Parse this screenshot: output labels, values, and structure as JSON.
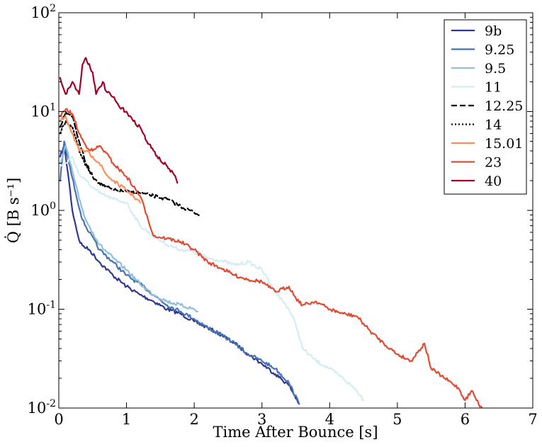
{
  "chart_data": {
    "type": "line",
    "xlabel": "Time After Bounce [s]",
    "ylabel": "Q̇ [B s⁻¹]",
    "xlim": [
      0,
      7
    ],
    "ylim": [
      0.01,
      100
    ],
    "yscale": "log",
    "x_ticks": [
      0,
      1,
      2,
      3,
      4,
      5,
      6,
      7
    ],
    "y_ticks": [
      {
        "value": 0.01,
        "base": "10",
        "exp": "-2"
      },
      {
        "value": 0.1,
        "base": "10",
        "exp": "-1"
      },
      {
        "value": 1,
        "base": "10",
        "exp": "0"
      },
      {
        "value": 10,
        "base": "10",
        "exp": "1"
      },
      {
        "value": 100,
        "base": "10",
        "exp": "2"
      }
    ],
    "legend_position": "top-right",
    "grid": false,
    "series": [
      {
        "name": "9b",
        "color": "#313695",
        "dash": "solid",
        "points": [
          [
            0.02,
            3.5
          ],
          [
            0.08,
            4.5
          ],
          [
            0.15,
            2.0
          ],
          [
            0.2,
            1.0
          ],
          [
            0.25,
            0.7
          ],
          [
            0.3,
            0.5
          ],
          [
            0.35,
            0.44
          ],
          [
            0.45,
            0.4
          ],
          [
            0.6,
            0.3
          ],
          [
            0.8,
            0.22
          ],
          [
            1.0,
            0.17
          ],
          [
            1.2,
            0.14
          ],
          [
            1.4,
            0.12
          ],
          [
            1.6,
            0.1
          ],
          [
            1.8,
            0.09
          ],
          [
            2.0,
            0.075
          ],
          [
            2.2,
            0.065
          ],
          [
            2.4,
            0.055
          ],
          [
            2.6,
            0.045
          ],
          [
            2.8,
            0.035
          ],
          [
            3.0,
            0.028
          ],
          [
            3.2,
            0.022
          ],
          [
            3.4,
            0.017
          ],
          [
            3.55,
            0.011
          ]
        ]
      },
      {
        "name": "9.25",
        "color": "#4575b4",
        "dash": "solid",
        "points": [
          [
            0.02,
            2.0
          ],
          [
            0.08,
            5.0
          ],
          [
            0.15,
            3.0
          ],
          [
            0.25,
            1.5
          ],
          [
            0.35,
            0.8
          ],
          [
            0.45,
            0.6
          ],
          [
            0.6,
            0.4
          ],
          [
            0.8,
            0.3
          ],
          [
            1.0,
            0.22
          ],
          [
            1.2,
            0.18
          ],
          [
            1.4,
            0.14
          ],
          [
            1.6,
            0.11
          ],
          [
            1.8,
            0.095
          ],
          [
            2.0,
            0.08
          ],
          [
            2.2,
            0.065
          ],
          [
            2.4,
            0.055
          ],
          [
            2.6,
            0.045
          ],
          [
            2.8,
            0.035
          ],
          [
            3.0,
            0.03
          ],
          [
            3.2,
            0.025
          ],
          [
            3.4,
            0.018
          ],
          [
            3.55,
            0.011
          ]
        ]
      },
      {
        "name": "9.5",
        "color": "#91bfdb",
        "dash": "solid",
        "points": [
          [
            0.02,
            3.0
          ],
          [
            0.1,
            4.5
          ],
          [
            0.2,
            2.5
          ],
          [
            0.3,
            1.3
          ],
          [
            0.4,
            0.8
          ],
          [
            0.5,
            0.6
          ],
          [
            0.6,
            0.45
          ],
          [
            0.8,
            0.33
          ],
          [
            1.0,
            0.25
          ],
          [
            1.2,
            0.18
          ],
          [
            1.4,
            0.14
          ],
          [
            1.6,
            0.12
          ],
          [
            1.8,
            0.11
          ],
          [
            2.0,
            0.1
          ],
          [
            2.05,
            0.095
          ]
        ]
      },
      {
        "name": "11",
        "color": "#d4ecf4",
        "dash": "solid",
        "points": [
          [
            0.02,
            2.8
          ],
          [
            0.1,
            3.0
          ],
          [
            0.2,
            3.5
          ],
          [
            0.3,
            2.3
          ],
          [
            0.4,
            2.0
          ],
          [
            0.5,
            1.7
          ],
          [
            0.6,
            1.5
          ],
          [
            0.8,
            1.3
          ],
          [
            1.0,
            1.2
          ],
          [
            1.2,
            0.7
          ],
          [
            1.4,
            0.55
          ],
          [
            1.6,
            0.45
          ],
          [
            1.8,
            0.4
          ],
          [
            2.0,
            0.38
          ],
          [
            2.2,
            0.33
          ],
          [
            2.4,
            0.31
          ],
          [
            2.6,
            0.28
          ],
          [
            2.8,
            0.3
          ],
          [
            3.0,
            0.25
          ],
          [
            3.2,
            0.15
          ],
          [
            3.4,
            0.1
          ],
          [
            3.5,
            0.07
          ],
          [
            3.6,
            0.04
          ],
          [
            3.8,
            0.03
          ],
          [
            4.0,
            0.025
          ],
          [
            4.2,
            0.02
          ],
          [
            4.4,
            0.015
          ],
          [
            4.5,
            0.012
          ]
        ]
      },
      {
        "name": "12.25",
        "color": "#000000",
        "dash": "dashed",
        "points": [
          [
            0.02,
            7.0
          ],
          [
            0.1,
            10.0
          ],
          [
            0.2,
            9.0
          ],
          [
            0.3,
            5.0
          ],
          [
            0.4,
            3.0
          ],
          [
            0.5,
            2.2
          ],
          [
            0.6,
            1.9
          ],
          [
            0.8,
            1.6
          ],
          [
            1.0,
            1.55
          ],
          [
            1.2,
            1.5
          ],
          [
            1.4,
            1.4
          ],
          [
            1.6,
            1.3
          ],
          [
            1.8,
            1.1
          ],
          [
            2.0,
            0.95
          ],
          [
            2.1,
            0.9
          ]
        ]
      },
      {
        "name": "14",
        "color": "#000000",
        "dash": "dotted",
        "points": [
          [
            0.02,
            6.0
          ],
          [
            0.1,
            8.0
          ],
          [
            0.2,
            7.0
          ],
          [
            0.3,
            4.0
          ],
          [
            0.4,
            2.8
          ],
          [
            0.45,
            2.5
          ]
        ]
      },
      {
        "name": "15.01",
        "color": "#fc8d59",
        "dash": "solid",
        "points": [
          [
            0.02,
            8.0
          ],
          [
            0.1,
            9.0
          ],
          [
            0.2,
            6.0
          ],
          [
            0.3,
            4.0
          ],
          [
            0.4,
            4.0
          ],
          [
            0.5,
            3.5
          ],
          [
            0.6,
            3.0
          ],
          [
            0.7,
            2.3
          ],
          [
            0.8,
            2.0
          ],
          [
            1.0,
            1.6
          ],
          [
            1.1,
            1.4
          ],
          [
            1.2,
            1.2
          ]
        ]
      },
      {
        "name": "23",
        "color": "#e34a33",
        "dash": "solid",
        "points": [
          [
            0.02,
            9.0
          ],
          [
            0.1,
            10.5
          ],
          [
            0.2,
            9.5
          ],
          [
            0.3,
            6.0
          ],
          [
            0.4,
            4.5
          ],
          [
            0.5,
            4.0
          ],
          [
            0.6,
            4.5
          ],
          [
            0.7,
            3.8
          ],
          [
            0.8,
            3.0
          ],
          [
            1.0,
            2.2
          ],
          [
            1.2,
            1.4
          ],
          [
            1.3,
            0.9
          ],
          [
            1.4,
            0.55
          ],
          [
            1.6,
            0.52
          ],
          [
            1.8,
            0.48
          ],
          [
            2.0,
            0.4
          ],
          [
            2.2,
            0.3
          ],
          [
            2.4,
            0.26
          ],
          [
            2.6,
            0.22
          ],
          [
            2.8,
            0.2
          ],
          [
            3.0,
            0.19
          ],
          [
            3.2,
            0.15
          ],
          [
            3.4,
            0.17
          ],
          [
            3.5,
            0.13
          ],
          [
            3.6,
            0.11
          ],
          [
            3.8,
            0.12
          ],
          [
            4.0,
            0.1
          ],
          [
            4.2,
            0.09
          ],
          [
            4.4,
            0.085
          ],
          [
            4.6,
            0.06
          ],
          [
            4.8,
            0.045
          ],
          [
            5.0,
            0.035
          ],
          [
            5.2,
            0.03
          ],
          [
            5.4,
            0.045
          ],
          [
            5.5,
            0.025
          ],
          [
            5.7,
            0.02
          ],
          [
            5.9,
            0.016
          ],
          [
            6.0,
            0.012
          ],
          [
            6.1,
            0.015
          ],
          [
            6.2,
            0.011
          ],
          [
            6.25,
            0.01
          ]
        ]
      },
      {
        "name": "40",
        "color": "#a50026",
        "dash": "solid",
        "points": [
          [
            0.02,
            22.0
          ],
          [
            0.1,
            15.0
          ],
          [
            0.2,
            20.0
          ],
          [
            0.3,
            15.0
          ],
          [
            0.35,
            30.0
          ],
          [
            0.4,
            35.0
          ],
          [
            0.5,
            25.0
          ],
          [
            0.55,
            15.0
          ],
          [
            0.65,
            20.0
          ],
          [
            0.7,
            16.0
          ],
          [
            0.8,
            14.0
          ],
          [
            0.9,
            11.0
          ],
          [
            1.0,
            10.0
          ],
          [
            1.1,
            8.0
          ],
          [
            1.2,
            7.0
          ],
          [
            1.3,
            5.0
          ],
          [
            1.4,
            4.0
          ],
          [
            1.5,
            3.2
          ],
          [
            1.6,
            2.8
          ],
          [
            1.7,
            2.3
          ],
          [
            1.75,
            1.9
          ]
        ]
      }
    ]
  }
}
